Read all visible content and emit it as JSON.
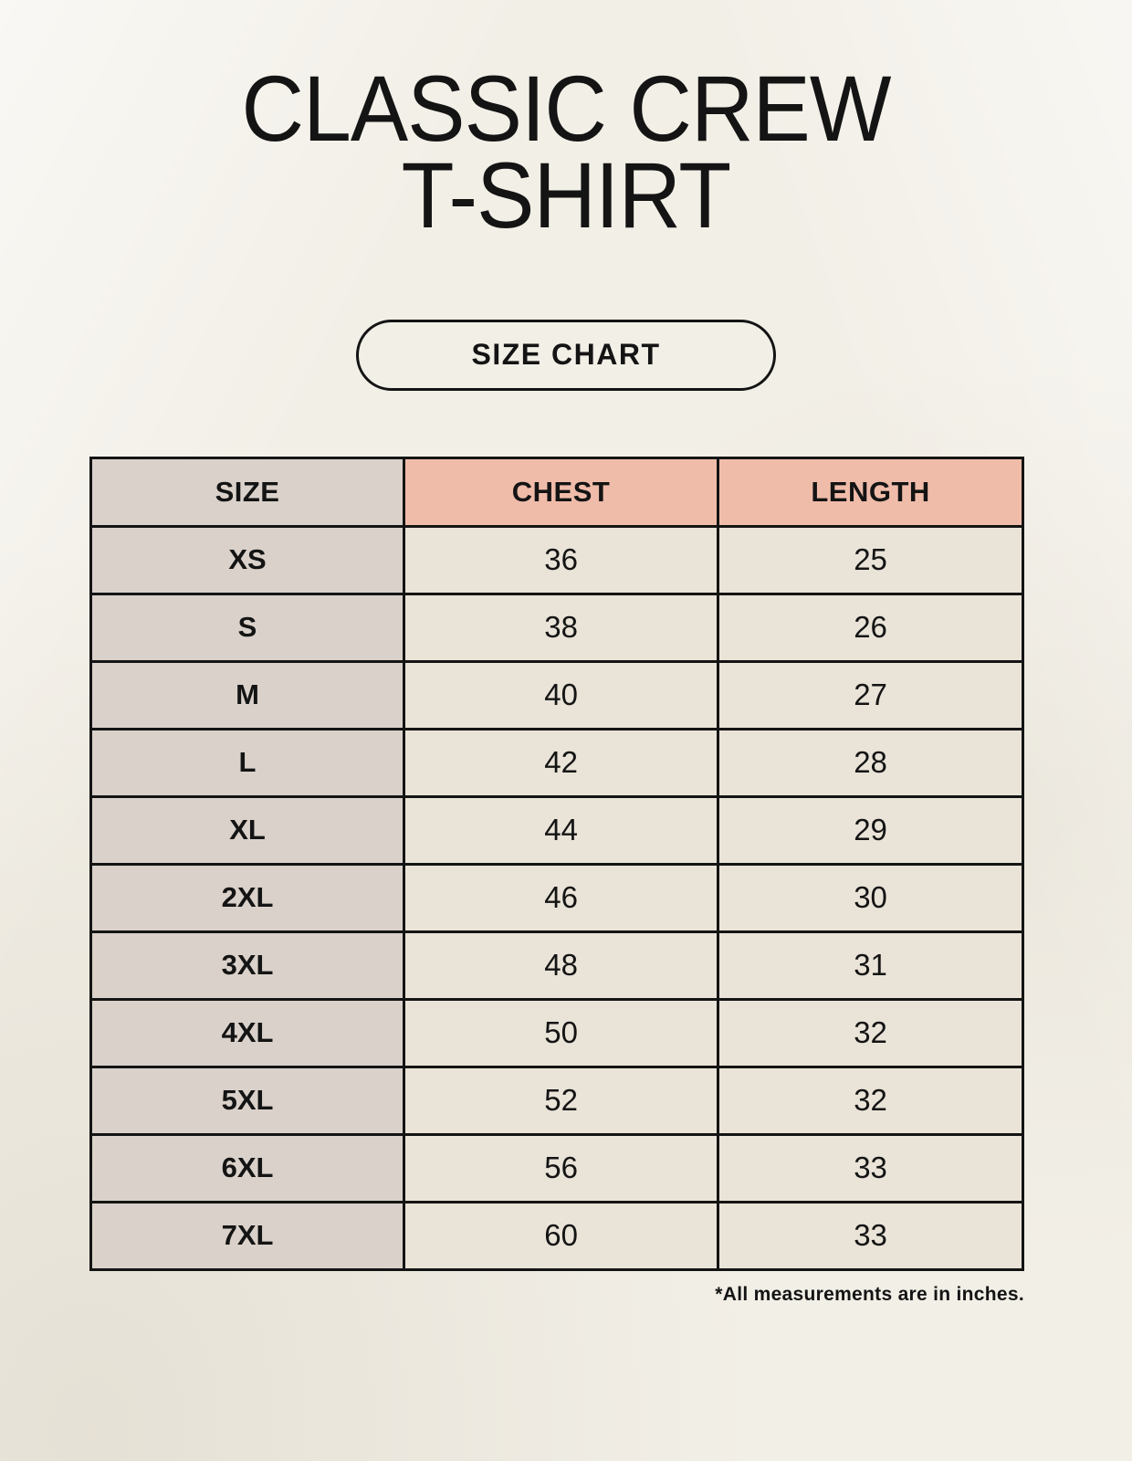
{
  "page": {
    "title": "CLASSIC CREW\nT-SHIRT",
    "button_label": "SIZE CHART",
    "footnote": "*All measurements are in inches."
  },
  "table": {
    "columns": [
      "SIZE",
      "CHEST",
      "LENGTH"
    ],
    "rows": [
      {
        "size": "XS",
        "chest": "36",
        "length": "25"
      },
      {
        "size": "S",
        "chest": "38",
        "length": "26"
      },
      {
        "size": "M",
        "chest": "40",
        "length": "27"
      },
      {
        "size": "L",
        "chest": "42",
        "length": "28"
      },
      {
        "size": "XL",
        "chest": "44",
        "length": "29"
      },
      {
        "size": "2XL",
        "chest": "46",
        "length": "30"
      },
      {
        "size": "3XL",
        "chest": "48",
        "length": "31"
      },
      {
        "size": "4XL",
        "chest": "50",
        "length": "32"
      },
      {
        "size": "5XL",
        "chest": "52",
        "length": "32"
      },
      {
        "size": "6XL",
        "chest": "56",
        "length": "33"
      },
      {
        "size": "7XL",
        "chest": "60",
        "length": "33"
      }
    ]
  },
  "colors": {
    "background": "#f2efe7",
    "header_pink": "#f0bcaa",
    "size_column_taupe": "#d9d1ca",
    "cell_cream": "#e9e3d8",
    "border": "#141414",
    "text": "#141414"
  }
}
